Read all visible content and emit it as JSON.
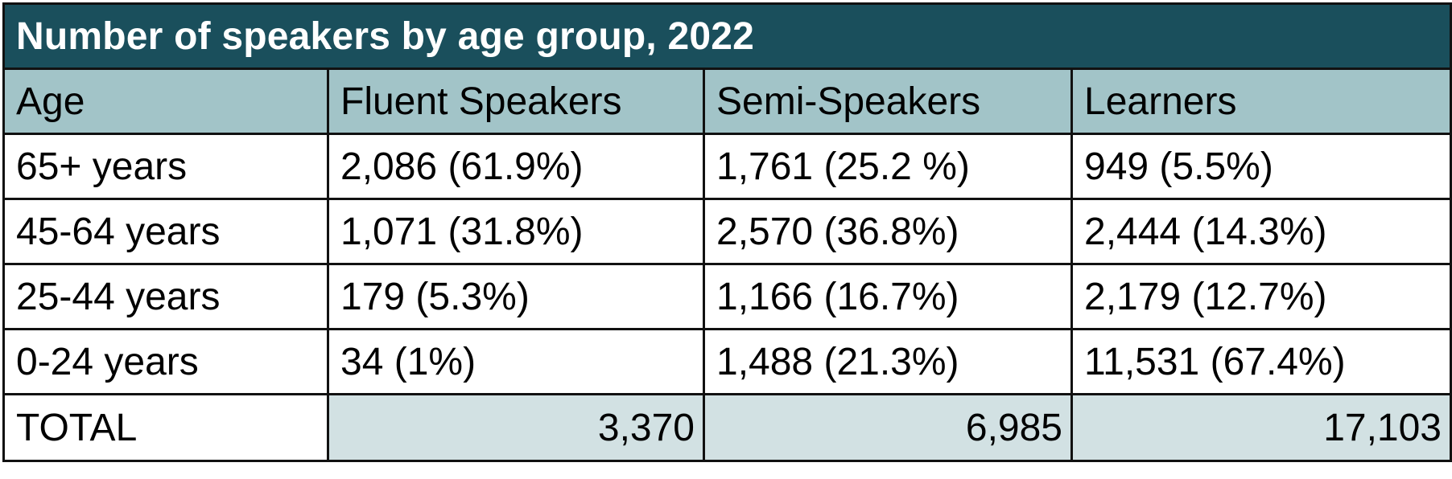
{
  "title": "Number of speakers by age group, 2022",
  "columns": [
    "Age",
    "Fluent Speakers",
    "Semi-Speakers",
    "Learners"
  ],
  "rows": [
    [
      "65+ years",
      "2,086 (61.9%)",
      "1,761 (25.2 %)",
      "949 (5.5%)"
    ],
    [
      "45-64 years",
      "1,071 (31.8%)",
      "2,570 (36.8%)",
      "2,444 (14.3%)"
    ],
    [
      "25-44 years",
      "179 (5.3%)",
      "1,166 (16.7%)",
      "2,179 (12.7%)"
    ],
    [
      "0-24 years",
      "34 (1%)",
      "1,488 (21.3%)",
      "11,531 (67.4%)"
    ]
  ],
  "total": {
    "label": "TOTAL",
    "values": [
      "3,370",
      "6,985",
      "17,103"
    ]
  },
  "colors": {
    "title_bg": "#1a4f5c",
    "header_bg": "#a2c4c8",
    "total_bg": "#d2e1e3"
  }
}
